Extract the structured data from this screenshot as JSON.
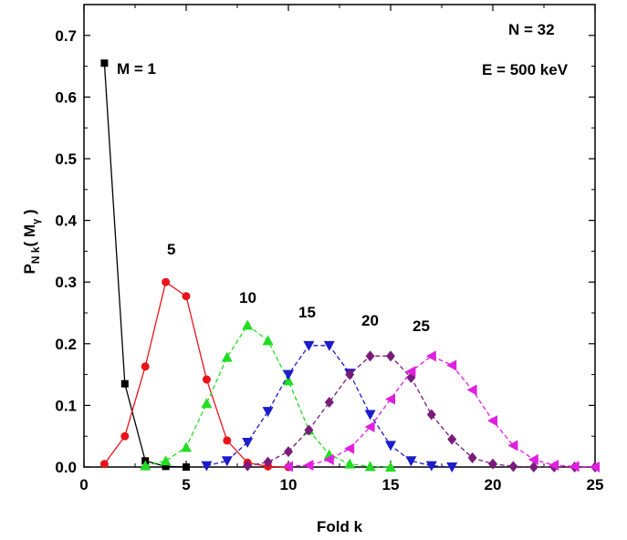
{
  "chart_data": {
    "type": "line",
    "xlabel": "Fold k",
    "ylabel_main": "P",
    "ylabel_sub": "N k",
    "ylabel_paren_open": "( M",
    "ylabel_gamma": "γ",
    "ylabel_paren_close": " )",
    "xlim": [
      0,
      25
    ],
    "ylim": [
      0,
      0.75
    ],
    "xticks": [
      0,
      5,
      10,
      15,
      20,
      25
    ],
    "yticks": [
      0.0,
      0.1,
      0.2,
      0.3,
      0.4,
      0.5,
      0.6,
      0.7
    ],
    "grid": false,
    "annotations": [
      "N = 32",
      "E = 500 keV"
    ],
    "series": [
      {
        "name": "M = 1",
        "color": "#000000",
        "marker": "square",
        "dash": false,
        "x": [
          1,
          2,
          3,
          4,
          5
        ],
        "y": [
          0.655,
          0.135,
          0.01,
          0.001,
          0.0
        ]
      },
      {
        "name": "5",
        "color": "#e8141c",
        "marker": "circle",
        "dash": false,
        "x": [
          1,
          2,
          3,
          4,
          5,
          6,
          7,
          8,
          9,
          10
        ],
        "y": [
          0.005,
          0.05,
          0.163,
          0.3,
          0.277,
          0.142,
          0.043,
          0.007,
          0.001,
          0.0
        ]
      },
      {
        "name": "10",
        "color": "#22dd22",
        "marker": "triangle-up",
        "dash": true,
        "x": [
          3,
          4,
          5,
          6,
          7,
          8,
          9,
          10,
          11,
          12,
          13,
          14,
          15
        ],
        "y": [
          0.002,
          0.01,
          0.032,
          0.103,
          0.178,
          0.23,
          0.205,
          0.14,
          0.06,
          0.02,
          0.005,
          0.001,
          0.0
        ]
      },
      {
        "name": "15",
        "color": "#1c1ccc",
        "marker": "triangle-down",
        "dash": true,
        "x": [
          6,
          7,
          8,
          9,
          10,
          11,
          12,
          13,
          14,
          15,
          16,
          17,
          18
        ],
        "y": [
          0.002,
          0.01,
          0.04,
          0.09,
          0.15,
          0.197,
          0.197,
          0.152,
          0.085,
          0.035,
          0.01,
          0.002,
          0.0
        ]
      },
      {
        "name": "20",
        "color": "#7a1c7a",
        "marker": "diamond",
        "dash": true,
        "x": [
          8,
          9,
          10,
          11,
          12,
          13,
          14,
          15,
          16,
          17,
          18,
          19,
          20,
          21,
          22,
          23,
          24,
          25
        ],
        "y": [
          0.002,
          0.008,
          0.025,
          0.06,
          0.105,
          0.15,
          0.18,
          0.18,
          0.145,
          0.085,
          0.045,
          0.015,
          0.005,
          0.001,
          0.0,
          0.0,
          0.0,
          0.0
        ]
      },
      {
        "name": "25",
        "color": "#e020e0",
        "marker": "triangle-left",
        "dash": true,
        "x": [
          10,
          11,
          12,
          13,
          14,
          15,
          16,
          17,
          18,
          19,
          20,
          21,
          22,
          23,
          24,
          25
        ],
        "y": [
          0.001,
          0.003,
          0.012,
          0.03,
          0.065,
          0.11,
          0.155,
          0.18,
          0.165,
          0.125,
          0.075,
          0.035,
          0.012,
          0.003,
          0.001,
          0.0
        ]
      }
    ]
  }
}
